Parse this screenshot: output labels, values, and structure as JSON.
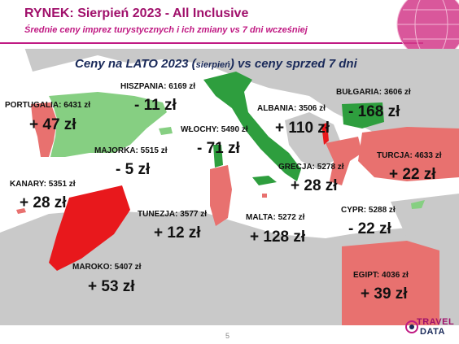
{
  "header": {
    "title": "RYNEK: Sierpień 2023 - All Inclusive",
    "subtitle": "Średnie ceny imprez turystycznych i ich zmiany vs 7 dni wcześniej"
  },
  "chart": {
    "title_part1": "Ceny na LATO 2023 (",
    "title_small": "sierpień",
    "title_part2": ") vs ceny sprzed 7 dni"
  },
  "countries": [
    {
      "key": "portugalia",
      "label": "PORTUGALIA: 6431 zł",
      "change": "+ 47 zł",
      "direction": "up"
    },
    {
      "key": "hiszpania",
      "label": "HISZPANIA: 6169 zł",
      "change": "- 11 zł",
      "direction": "down"
    },
    {
      "key": "majorka",
      "label": "MAJORKA: 5515 zł",
      "change": "- 5 zł",
      "direction": "down"
    },
    {
      "key": "kanary",
      "label": "KANARY: 5351 zł",
      "change": "+ 28 zł",
      "direction": "up"
    },
    {
      "key": "wlochy",
      "label": "WŁOCHY: 5490 zł",
      "change": "- 71 zł",
      "direction": "down"
    },
    {
      "key": "albania",
      "label": "ALBANIA: 3506 zł",
      "change": "+ 110 zł",
      "direction": "up"
    },
    {
      "key": "bulgaria",
      "label": "BUŁGARIA: 3606 zł",
      "change": "- 168 zł",
      "direction": "down"
    },
    {
      "key": "turcja",
      "label": "TURCJA: 4633 zł",
      "change": "+ 22 zł",
      "direction": "up"
    },
    {
      "key": "grecja",
      "label": "GRECJA: 5278 zł",
      "change": "+ 28 zł",
      "direction": "up"
    },
    {
      "key": "tunezja",
      "label": "TUNEZJA: 3577 zł",
      "change": "+ 12 zł",
      "direction": "up"
    },
    {
      "key": "malta",
      "label": "MALTA: 5272 zł",
      "change": "+ 128 zł",
      "direction": "up"
    },
    {
      "key": "cypr",
      "label": "CYPR: 5288 zł",
      "change": "- 22 zł",
      "direction": "down"
    },
    {
      "key": "maroko",
      "label": "MAROKO: 5407 zł",
      "change": "+ 53 zł",
      "direction": "up"
    },
    {
      "key": "egipt",
      "label": "EGIPT: 4036 zł",
      "change": "+ 39 zł",
      "direction": "up"
    }
  ],
  "colors": {
    "increase": "#e8716f",
    "strong_increase": "#e8181c",
    "decrease": "#2e9e3e",
    "light_decrease": "#86cf82",
    "land_gray": "#c7c7c7",
    "brand_magenta": "#c01a83"
  },
  "footer": {
    "page_number": "5",
    "logo_line1": "TRAVEL",
    "logo_line2": "DATA"
  }
}
